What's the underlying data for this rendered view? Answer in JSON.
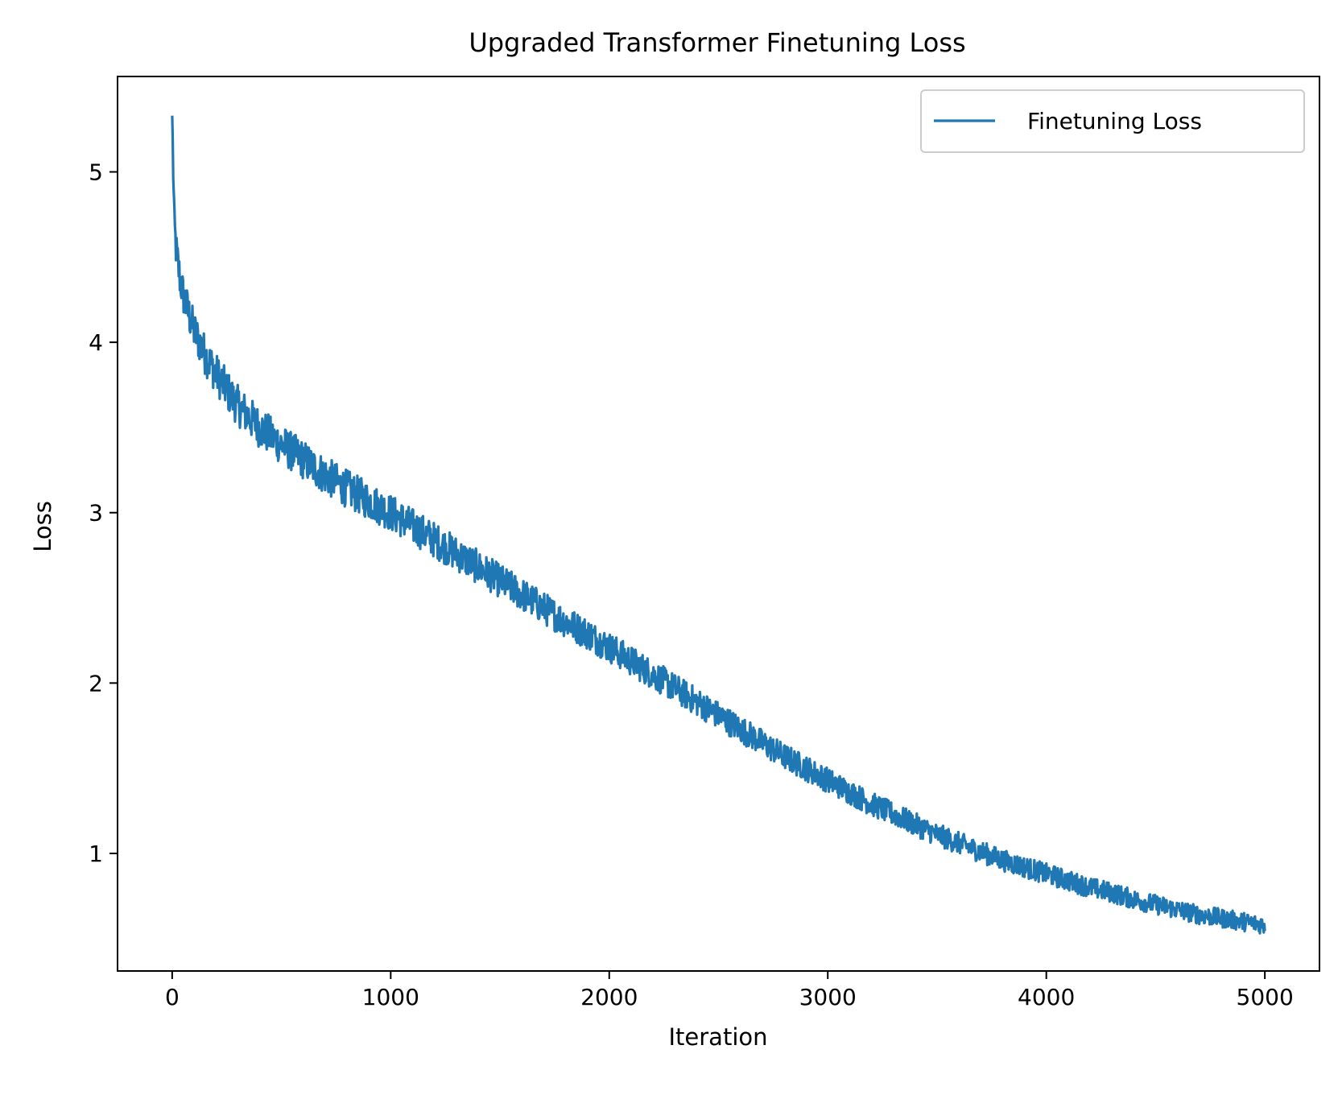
{
  "chart_data": {
    "type": "line",
    "title": "Upgraded Transformer Finetuning Loss",
    "xlabel": "Iteration",
    "ylabel": "Loss",
    "xlim": [
      -250,
      5250
    ],
    "ylim": [
      0.31,
      5.56
    ],
    "xticks": [
      0,
      1000,
      2000,
      3000,
      4000,
      5000
    ],
    "xtick_labels": [
      "0",
      "1000",
      "2000",
      "3000",
      "4000",
      "5000"
    ],
    "yticks": [
      1,
      2,
      3,
      4,
      5
    ],
    "ytick_labels": [
      "1",
      "2",
      "3",
      "4",
      "5"
    ],
    "grid": false,
    "legend": {
      "position": "top-right",
      "entries": [
        "Finetuning Loss"
      ]
    },
    "series": [
      {
        "name": "Finetuning Loss",
        "color": "#1f77b4",
        "x": [
          0,
          10,
          20,
          35,
          50,
          75,
          100,
          150,
          200,
          250,
          300,
          400,
          500,
          600,
          700,
          800,
          900,
          1000,
          1100,
          1200,
          1300,
          1400,
          1500,
          1600,
          1700,
          1800,
          1900,
          2000,
          2100,
          2200,
          2300,
          2400,
          2500,
          2600,
          2700,
          2800,
          2900,
          3000,
          3100,
          3200,
          3300,
          3400,
          3500,
          3600,
          3700,
          3800,
          3900,
          4000,
          4100,
          4200,
          4300,
          4400,
          4500,
          4600,
          4700,
          4800,
          4900,
          5000
        ],
        "values": [
          5.33,
          4.68,
          4.52,
          4.38,
          4.28,
          4.17,
          4.07,
          3.93,
          3.82,
          3.72,
          3.63,
          3.5,
          3.4,
          3.31,
          3.22,
          3.14,
          3.07,
          3.0,
          2.92,
          2.84,
          2.76,
          2.68,
          2.6,
          2.52,
          2.44,
          2.36,
          2.29,
          2.21,
          2.13,
          2.05,
          1.97,
          1.89,
          1.81,
          1.73,
          1.65,
          1.57,
          1.5,
          1.43,
          1.36,
          1.29,
          1.23,
          1.17,
          1.11,
          1.06,
          1.01,
          0.96,
          0.92,
          0.88,
          0.84,
          0.8,
          0.77,
          0.73,
          0.7,
          0.67,
          0.64,
          0.62,
          0.6,
          0.58
        ],
        "noise_band": 0.12
      }
    ]
  }
}
